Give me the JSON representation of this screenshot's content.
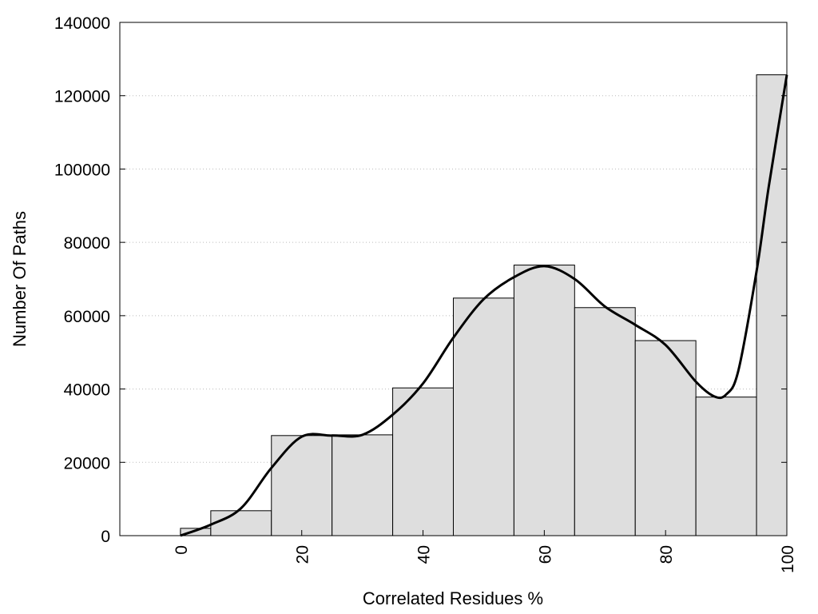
{
  "chart_data": {
    "type": "bar",
    "title": "",
    "xlabel": "Correlated Residues %",
    "ylabel": "Number Of Paths",
    "xlim": [
      -10,
      100
    ],
    "ylim": [
      0,
      140000
    ],
    "x_ticks": [
      "0",
      "20",
      "40",
      "60",
      "80",
      "100"
    ],
    "x_tick_values": [
      0,
      20,
      40,
      60,
      80,
      100
    ],
    "y_ticks": [
      "0",
      "20000",
      "40000",
      "60000",
      "80000",
      "100000",
      "120000",
      "140000"
    ],
    "y_tick_values": [
      0,
      20000,
      40000,
      60000,
      80000,
      100000,
      120000,
      140000
    ],
    "grid": "horizontal dotted",
    "bar_fill": "#dedede",
    "bins": [
      {
        "from": 0,
        "to": 5,
        "value": 2000
      },
      {
        "from": 5,
        "to": 15,
        "value": 6800
      },
      {
        "from": 15,
        "to": 25,
        "value": 27300
      },
      {
        "from": 25,
        "to": 35,
        "value": 27500
      },
      {
        "from": 35,
        "to": 45,
        "value": 40300
      },
      {
        "from": 45,
        "to": 55,
        "value": 64800
      },
      {
        "from": 55,
        "to": 65,
        "value": 73800
      },
      {
        "from": 65,
        "to": 75,
        "value": 62200
      },
      {
        "from": 75,
        "to": 85,
        "value": 53200
      },
      {
        "from": 85,
        "to": 95,
        "value": 37800
      },
      {
        "from": 95,
        "to": 100,
        "value": 125700
      }
    ],
    "curve": {
      "x": [
        0,
        5,
        10,
        15,
        20,
        25,
        30,
        35,
        40,
        45,
        50,
        55,
        60,
        65,
        70,
        75,
        80,
        85,
        88,
        90,
        92,
        95,
        97,
        100
      ],
      "y": [
        0,
        3000,
        7500,
        18500,
        27000,
        27300,
        27500,
        33000,
        41500,
        54000,
        64500,
        70500,
        73500,
        70000,
        62500,
        57500,
        52000,
        42000,
        38000,
        38500,
        45000,
        72000,
        95000,
        125700
      ]
    }
  }
}
